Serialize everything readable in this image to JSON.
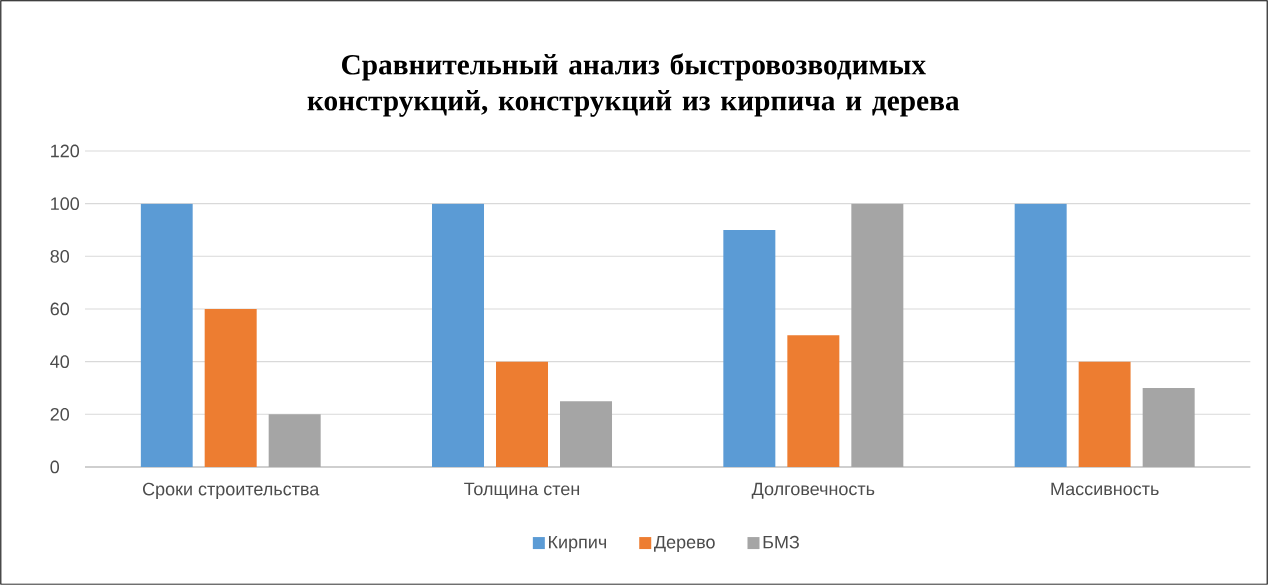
{
  "chart_data": {
    "type": "bar",
    "title": "Сравнительный анализ быстровозводимых конструкций, конструкций из кирпича и дерева",
    "categories": [
      "Сроки строительства",
      "Толщина стен",
      "Долговечность",
      "Массивность"
    ],
    "series": [
      {
        "name": "Кирпич",
        "color": "#5b9bd5",
        "values": [
          100,
          100,
          90,
          100
        ]
      },
      {
        "name": "Дерево",
        "color": "#ed7d31",
        "values": [
          60,
          40,
          50,
          40
        ]
      },
      {
        "name": "БМЗ",
        "color": "#a5a5a5",
        "values": [
          20,
          25,
          100,
          30
        ]
      }
    ],
    "ylim": [
      0,
      120
    ],
    "yticks": [
      0,
      20,
      40,
      60,
      80,
      100,
      120
    ],
    "grid": "y",
    "legend": "bottom"
  }
}
